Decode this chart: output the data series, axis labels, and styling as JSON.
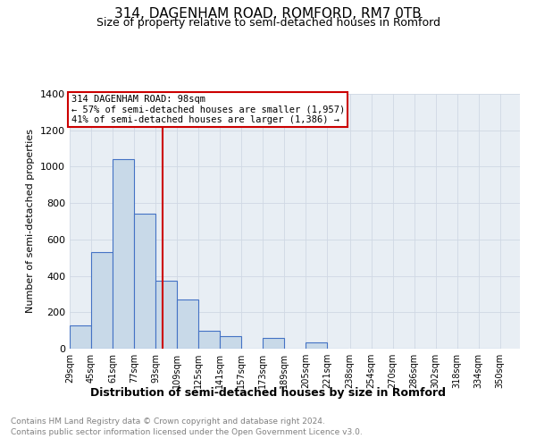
{
  "title_line1": "314, DAGENHAM ROAD, ROMFORD, RM7 0TB",
  "title_line2": "Size of property relative to semi-detached houses in Romford",
  "xlabel": "Distribution of semi-detached houses by size in Romford",
  "ylabel": "Number of semi-detached properties",
  "annotation_line1": "314 DAGENHAM ROAD: 98sqm",
  "annotation_line2": "← 57% of semi-detached houses are smaller (1,957)",
  "annotation_line3": "41% of semi-detached houses are larger (1,386) →",
  "property_size": 98,
  "bin_labels": [
    "29sqm",
    "45sqm",
    "61sqm",
    "77sqm",
    "93sqm",
    "109sqm",
    "125sqm",
    "141sqm",
    "157sqm",
    "173sqm",
    "189sqm",
    "205sqm",
    "221sqm",
    "238sqm",
    "254sqm",
    "270sqm",
    "286sqm",
    "302sqm",
    "318sqm",
    "334sqm",
    "350sqm"
  ],
  "bin_edges": [
    29,
    45,
    61,
    77,
    93,
    109,
    125,
    141,
    157,
    173,
    189,
    205,
    221,
    238,
    254,
    270,
    286,
    302,
    318,
    334,
    350
  ],
  "bar_heights": [
    130,
    530,
    1040,
    740,
    375,
    270,
    100,
    70,
    0,
    60,
    0,
    35,
    0,
    0,
    0,
    0,
    0,
    0,
    0,
    0
  ],
  "bar_facecolor": "#c8d9e8",
  "bar_edgecolor": "#4472c4",
  "vline_color": "#cc0000",
  "vline_x": 98,
  "annotation_box_edgecolor": "#cc0000",
  "annotation_box_facecolor": "#ffffff",
  "grid_color": "#d0d8e4",
  "background_color": "#e8eef4",
  "ylim": [
    0,
    1400
  ],
  "yticks": [
    0,
    200,
    400,
    600,
    800,
    1000,
    1200,
    1400
  ],
  "footnote1": "Contains HM Land Registry data © Crown copyright and database right 2024.",
  "footnote2": "Contains public sector information licensed under the Open Government Licence v3.0."
}
